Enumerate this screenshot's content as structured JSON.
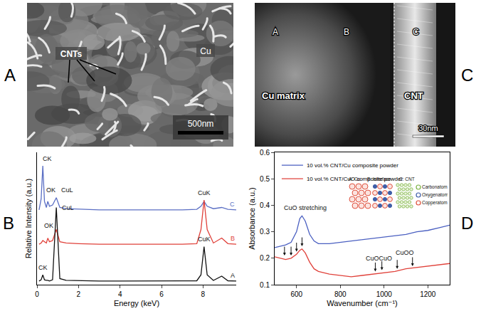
{
  "images": [
    {
      "letter": "A",
      "labels": {
        "matrix": "Cu",
        "tubes": "CNTs"
      },
      "scale_bar": "500nm"
    },
    {
      "letter": "C",
      "points": [
        "A",
        "B",
        "C"
      ],
      "regions": [
        "Cu matrix",
        "CNT"
      ],
      "scale_bar": "30nm"
    }
  ],
  "chart_data": [
    {
      "letter": "B",
      "type": "line",
      "x_title": "Energy (keV)",
      "y_title": "Relative Intensity (a.u.)",
      "x": [
        0.1,
        0.2,
        0.28,
        0.36,
        0.45,
        0.52,
        0.6,
        0.75,
        0.93,
        1.1,
        1.4,
        2,
        3,
        4,
        5,
        6,
        7,
        7.7,
        7.9,
        8.05,
        8.2,
        8.5,
        8.9,
        9.2,
        9.6
      ],
      "series": [
        {
          "name": "C",
          "color": "#5b6fc4",
          "values": [
            61,
            70,
            97,
            68,
            63,
            68,
            64,
            65,
            71,
            63,
            62,
            61.5,
            61,
            61,
            61,
            61,
            61,
            61.5,
            64,
            68,
            64,
            62,
            63,
            61.5,
            61
          ]
        },
        {
          "name": "B",
          "color": "#e0413a",
          "values": [
            33,
            34,
            36,
            35,
            34,
            38,
            35,
            36,
            45,
            35,
            34,
            33.5,
            33,
            33,
            33,
            33,
            33,
            33.5,
            45,
            69,
            45,
            34,
            38,
            33.5,
            33
          ]
        },
        {
          "name": "A",
          "color": "#111111",
          "values": [
            3,
            4,
            8,
            4,
            3.5,
            3.5,
            3,
            4,
            63,
            5,
            3.5,
            3.2,
            3,
            3,
            3,
            3,
            3,
            3.2,
            8,
            31,
            8,
            3.5,
            7,
            3.2,
            3
          ]
        }
      ],
      "xlim": [
        0,
        9.6
      ],
      "xticks": [
        0,
        2,
        4,
        6,
        8
      ],
      "ylim": [
        0,
        108
      ],
      "tick_labels": "x",
      "grid": false,
      "annotations": [
        {
          "text": "CK",
          "x": 0.5,
          "y": 103
        },
        {
          "text": "OK",
          "x": 0.68,
          "y": 77
        },
        {
          "text": "CuL",
          "x": 1.45,
          "y": 77
        },
        {
          "text": "CuK",
          "x": 8.05,
          "y": 75
        },
        {
          "text": "OK",
          "x": 0.55,
          "y": 48
        },
        {
          "text": "CK",
          "x": 0.3,
          "y": 14
        },
        {
          "text": "CuL",
          "x": 1.5,
          "y": 63
        },
        {
          "text": "CuK",
          "x": 8.05,
          "y": 37
        }
      ]
    },
    {
      "letter": "D",
      "type": "line",
      "x_title": "Wavenumber (cm⁻¹)",
      "y_title": "Absorbance (a.u.)",
      "x": [
        500,
        525,
        550,
        575,
        600,
        615,
        625,
        640,
        660,
        680,
        700,
        750,
        800,
        850,
        900,
        950,
        1000,
        1050,
        1100,
        1150,
        1200,
        1250,
        1300
      ],
      "series": [
        {
          "name": "10 vol.% CNT/Cu composite powder",
          "color": "#4a5fc1",
          "values": [
            0.24,
            0.245,
            0.25,
            0.26,
            0.3,
            0.35,
            0.36,
            0.34,
            0.29,
            0.265,
            0.255,
            0.255,
            0.26,
            0.265,
            0.27,
            0.275,
            0.28,
            0.285,
            0.29,
            0.3,
            0.305,
            0.315,
            0.325
          ]
        },
        {
          "name": "10 vol.% CNT/CuO composite powder",
          "color": "#e0413a",
          "values": [
            0.205,
            0.2,
            0.195,
            0.2,
            0.215,
            0.23,
            0.235,
            0.22,
            0.185,
            0.16,
            0.15,
            0.14,
            0.135,
            0.13,
            0.135,
            0.14,
            0.145,
            0.15,
            0.16,
            0.165,
            0.17,
            0.175,
            0.18
          ]
        }
      ],
      "xlim": [
        500,
        1300
      ],
      "xticks": [
        600,
        800,
        1000,
        1200
      ],
      "ylim": [
        0.1,
        0.6
      ],
      "yticks": [
        0.1,
        0.2,
        0.3,
        0.4,
        0.5,
        0.6
      ],
      "grid": false,
      "legend": "top-left",
      "annotations": [
        {
          "text": "CuO stretching",
          "x": 640,
          "y": 0.39
        },
        {
          "text": "CuOCuO",
          "x": 975,
          "y": 0.2
        },
        {
          "text": "CuOO",
          "x": 1095,
          "y": 0.22
        }
      ],
      "arrows": [
        {
          "x": 545,
          "y": 0.21
        },
        {
          "x": 575,
          "y": 0.21
        },
        {
          "x": 600,
          "y": 0.225
        },
        {
          "x": 625,
          "y": 0.245
        },
        {
          "x": 960,
          "y": 0.15
        },
        {
          "x": 990,
          "y": 0.155
        },
        {
          "x": 1060,
          "y": 0.16
        },
        {
          "x": 1130,
          "y": 0.17
        }
      ],
      "inset": {
        "labels": [
          "A: Cu",
          "B: Interface",
          "C: CNT"
        ],
        "atoms": [
          {
            "name": "Carbonatom",
            "color": "#7cb342"
          },
          {
            "name": "Oxygenatom",
            "color": "#3f5fa8"
          },
          {
            "name": "Copperatom",
            "color": "#e0523f"
          }
        ]
      }
    }
  ]
}
